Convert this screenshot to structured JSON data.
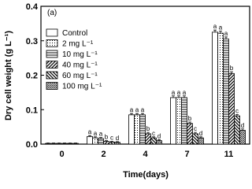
{
  "chart_data": {
    "type": "bar",
    "annotation": "(a)",
    "x_label": "Time(days)",
    "y_label": "Dry cell weight (g L⁻¹)",
    "categories": [
      "0",
      "2",
      "4",
      "7",
      "11"
    ],
    "ylim": [
      0,
      0.4
    ],
    "yticks": [
      {
        "value": 0,
        "label": "0.0"
      },
      0.1,
      0.2,
      0.3,
      0.4
    ],
    "legend": "upper-left",
    "series": [
      {
        "name": "Control",
        "color": "#000000",
        "pattern": "none",
        "values": [
          0.002,
          0.022,
          0.085,
          0.135,
          0.325
        ],
        "errors": [
          0.001,
          0.003,
          0.004,
          0.005,
          0.006
        ],
        "letters": [
          null,
          "a",
          "a",
          "a",
          "a"
        ]
      },
      {
        "name": "2 mg L⁻¹",
        "color": "#000000",
        "pattern": "dots",
        "values": [
          0.002,
          0.018,
          0.085,
          0.135,
          0.322
        ],
        "errors": [
          0.001,
          0.003,
          0.004,
          0.005,
          0.006
        ],
        "letters": [
          null,
          "a",
          "a",
          "a",
          "a"
        ]
      },
      {
        "name": "10 mg L⁻¹",
        "color": "#000000",
        "pattern": "hlines",
        "values": [
          0.002,
          0.016,
          0.085,
          0.135,
          0.305
        ],
        "errors": [
          0.001,
          0.003,
          0.004,
          0.005,
          0.006
        ],
        "letters": [
          null,
          "a",
          "a",
          "a",
          "a"
        ]
      },
      {
        "name": "40 mg L⁻¹",
        "color": "#000000",
        "pattern": "diag",
        "values": [
          0.002,
          0.008,
          0.03,
          0.06,
          0.205
        ],
        "errors": [
          0.001,
          0.002,
          0.004,
          0.004,
          0.005
        ],
        "letters": [
          null,
          "b",
          "b",
          "b",
          "b"
        ]
      },
      {
        "name": "60 mg L⁻¹",
        "color": "#000000",
        "pattern": "backdiag",
        "values": [
          0.002,
          0.006,
          0.018,
          0.03,
          0.082
        ],
        "errors": [
          0.001,
          0.002,
          0.003,
          0.004,
          0.004
        ],
        "letters": [
          null,
          "c",
          "c",
          "c",
          "c"
        ]
      },
      {
        "name": "100 mg L⁻¹",
        "color": "#000000",
        "pattern": "dense",
        "values": [
          0.002,
          0.005,
          0.01,
          0.018,
          0.04
        ],
        "errors": [
          0.001,
          0.002,
          0.003,
          0.003,
          0.004
        ],
        "letters": [
          null,
          "d",
          "d",
          "d",
          "d"
        ]
      }
    ]
  }
}
